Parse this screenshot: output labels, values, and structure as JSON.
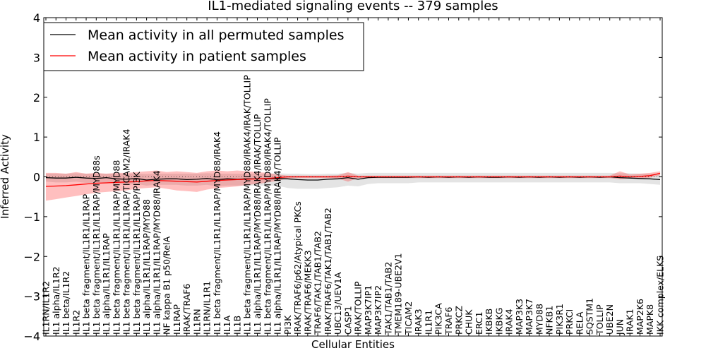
{
  "chart_data": {
    "type": "line",
    "title": "IL1-mediated signaling events -- 379 samples",
    "xlabel": "Cellular Entities",
    "ylabel": "Inferred Activity",
    "ylim": [
      -4,
      4
    ],
    "yticks": [
      -4,
      -3,
      -2,
      -1,
      0,
      1,
      2,
      3,
      4
    ],
    "ytick_labels": [
      "−4",
      "−3",
      "−2",
      "−1",
      "0",
      "1",
      "2",
      "3",
      "4"
    ],
    "grid": false,
    "legend_position": "top-left",
    "categories": [
      "IL1RN/IL1R2",
      "IL1 alpha/IL1R2",
      "IL1 beta/IL1R2",
      "IL1R2",
      "IL1 beta fragment/IL1R1/IL1RAP",
      "IL1 beta fragment/IL1R1/IL1RAP/MYD88s",
      "IL1 alpha/IL1R1/IL1RAP",
      "IL1 beta fragment/IL1R1/IL1RAP/MYD88",
      "IL1 beta fragment/IL1R1/IL1RAP/TICAM2/IRAK4",
      "IL1 beta fragment/IL1R1/IL1RAP/PI3K",
      "IL1 alpha/IL1R1/IL1RAP/MYD88",
      "IL1 alpha/IL1R1/IL1RAP/MYD88/IRAK4",
      "NF kappa B1 p50/RelA",
      "IL1RAP",
      "IRAK/TRAF6",
      "IL1RN",
      "IL1RN/IL1R1",
      "IL1 beta fragment/IL1R1/IL1RAP/MYD88/IRAK4",
      "IL1A",
      "IL1B",
      "IL1 beta fragment/IL1R1/IL1RAP/MYD88/IRAK4/IRAK/TOLLIP",
      "IL1 alpha/IL1R1/IL1RAP/MYD88/IRAK4/IRAK/TOLLIP",
      "IL1 beta fragment/IL1R1/IL1RAP/MYD88/IRAK4/TOLLIP",
      "IL1 alpha/IL1R1/IL1RAP/MYD88/IRAK4/TOLLIP",
      "PI3K",
      "IRAK/TRAF6/p62/Atypical PKCs",
      "IRAK/TRAF6/MEKK3",
      "TRAF6/TAK1/TAB1/TAB2",
      "IRAK/TRAF6/TAK1/TAB1/TAB2",
      "UBC13/UEV1A",
      "CASP1",
      "IRAK/TOLLIP",
      "MAP3K7IP1",
      "MAP3K7IP2",
      "TAK1/TAB1/TAB2",
      "TMEM189-UBE2V1",
      "TICAM2",
      "IRAK3",
      "IL1R1",
      "PIK3CA",
      "TRAF6",
      "PRKCZ",
      "CHUK",
      "ERC1",
      "IKBKB",
      "IKBKG",
      "IRAK4",
      "MAP3K3",
      "MAP3K7",
      "MYD88",
      "NFKB1",
      "PIK3R1",
      "PRKCI",
      "RELA",
      "SQSTM1",
      "TOLLIP",
      "UBE2N",
      "JUN",
      "IRAK1",
      "MAP2K6",
      "MAPK8",
      "IKK complex/ELKS"
    ],
    "series": [
      {
        "name": "Mean activity in all permuted samples",
        "color": "#000000",
        "values": [
          -0.02,
          -0.03,
          -0.03,
          -0.01,
          -0.03,
          -0.04,
          -0.02,
          -0.05,
          -0.06,
          -0.04,
          -0.08,
          -0.06,
          -0.05,
          -0.05,
          -0.07,
          -0.06,
          -0.04,
          -0.07,
          -0.05,
          -0.06,
          -0.05,
          -0.05,
          -0.05,
          -0.04,
          -0.05,
          -0.07,
          -0.08,
          -0.08,
          -0.06,
          -0.05,
          -0.02,
          -0.06,
          -0.02,
          -0.01,
          -0.01,
          -0.01,
          -0.01,
          0.0,
          -0.01,
          0.0,
          -0.01,
          0.0,
          -0.01,
          0.0,
          -0.01,
          -0.01,
          0.0,
          -0.01,
          0.0,
          -0.01,
          0.0,
          -0.01,
          0.0,
          -0.01,
          0.0,
          -0.01,
          0.0,
          -0.02,
          -0.03,
          -0.04,
          -0.05,
          -0.07
        ],
        "band_low": [
          -0.12,
          -0.14,
          -0.14,
          -0.12,
          -0.15,
          -0.16,
          -0.14,
          -0.18,
          -0.2,
          -0.18,
          -0.22,
          -0.2,
          -0.2,
          -0.2,
          -0.22,
          -0.22,
          -0.2,
          -0.24,
          -0.22,
          -0.22,
          -0.22,
          -0.22,
          -0.22,
          -0.22,
          -0.28,
          -0.3,
          -0.3,
          -0.3,
          -0.28,
          -0.26,
          -0.22,
          -0.24,
          -0.18,
          -0.16,
          -0.16,
          -0.16,
          -0.16,
          -0.14,
          -0.14,
          -0.14,
          -0.14,
          -0.14,
          -0.14,
          -0.14,
          -0.14,
          -0.14,
          -0.14,
          -0.14,
          -0.14,
          -0.14,
          -0.14,
          -0.14,
          -0.14,
          -0.14,
          -0.14,
          -0.14,
          -0.14,
          -0.16,
          -0.16,
          -0.16,
          -0.18,
          -0.2
        ],
        "band_high": [
          0.08,
          0.08,
          0.08,
          0.09,
          0.08,
          0.08,
          0.08,
          0.08,
          0.08,
          0.08,
          0.07,
          0.08,
          0.08,
          0.08,
          0.08,
          0.08,
          0.09,
          0.08,
          0.08,
          0.08,
          0.08,
          0.08,
          0.08,
          0.09,
          0.08,
          0.08,
          0.07,
          0.07,
          0.08,
          0.08,
          0.1,
          0.08,
          0.1,
          0.1,
          0.1,
          0.1,
          0.1,
          0.1,
          0.1,
          0.1,
          0.1,
          0.1,
          0.1,
          0.1,
          0.1,
          0.1,
          0.1,
          0.1,
          0.1,
          0.1,
          0.1,
          0.1,
          0.1,
          0.1,
          0.1,
          0.1,
          0.1,
          0.09,
          0.09,
          0.08,
          0.08,
          0.07
        ]
      },
      {
        "name": "Mean activity in patient samples",
        "color": "#ff0000",
        "values": [
          -0.24,
          -0.23,
          -0.22,
          -0.2,
          -0.18,
          -0.16,
          -0.15,
          -0.14,
          -0.13,
          -0.12,
          -0.1,
          -0.09,
          -0.1,
          -0.11,
          -0.12,
          -0.13,
          -0.11,
          -0.09,
          -0.08,
          -0.07,
          -0.06,
          -0.05,
          -0.04,
          -0.02,
          0.0,
          0.0,
          0.0,
          0.0,
          0.0,
          0.0,
          0.02,
          0.0,
          0.0,
          0.0,
          0.0,
          0.0,
          0.0,
          0.0,
          0.0,
          0.0,
          0.0,
          0.0,
          0.0,
          0.0,
          0.0,
          0.0,
          0.0,
          0.0,
          0.0,
          0.0,
          0.0,
          0.0,
          0.0,
          0.0,
          0.0,
          0.0,
          0.0,
          0.02,
          0.0,
          0.01,
          0.03,
          0.09
        ],
        "band_low": [
          -0.6,
          -0.56,
          -0.52,
          -0.48,
          -0.44,
          -0.4,
          -0.38,
          -0.36,
          -0.34,
          -0.3,
          -0.28,
          -0.26,
          -0.3,
          -0.34,
          -0.36,
          -0.38,
          -0.32,
          -0.28,
          -0.26,
          -0.24,
          -0.2,
          -0.18,
          -0.14,
          -0.1,
          -0.04,
          -0.03,
          -0.03,
          -0.03,
          -0.03,
          -0.04,
          -0.12,
          -0.03,
          -0.03,
          -0.03,
          -0.03,
          -0.03,
          -0.03,
          -0.03,
          -0.03,
          -0.03,
          -0.03,
          -0.03,
          -0.03,
          -0.03,
          -0.03,
          -0.03,
          -0.03,
          -0.03,
          -0.03,
          -0.03,
          -0.03,
          -0.03,
          -0.03,
          -0.03,
          -0.03,
          -0.03,
          -0.03,
          -0.06,
          -0.04,
          -0.04,
          -0.02,
          0.04
        ],
        "band_high": [
          0.1,
          0.1,
          0.08,
          0.12,
          0.08,
          0.1,
          0.08,
          0.1,
          0.1,
          0.12,
          0.14,
          0.16,
          0.12,
          0.14,
          0.12,
          0.1,
          0.14,
          0.16,
          0.14,
          0.16,
          0.14,
          0.12,
          0.1,
          0.06,
          0.03,
          0.03,
          0.03,
          0.03,
          0.03,
          0.04,
          0.12,
          0.03,
          0.03,
          0.03,
          0.03,
          0.03,
          0.03,
          0.03,
          0.03,
          0.03,
          0.03,
          0.03,
          0.03,
          0.03,
          0.03,
          0.03,
          0.03,
          0.03,
          0.03,
          0.03,
          0.03,
          0.03,
          0.03,
          0.03,
          0.03,
          0.03,
          0.03,
          0.14,
          0.06,
          0.08,
          0.1,
          0.14
        ]
      }
    ]
  }
}
